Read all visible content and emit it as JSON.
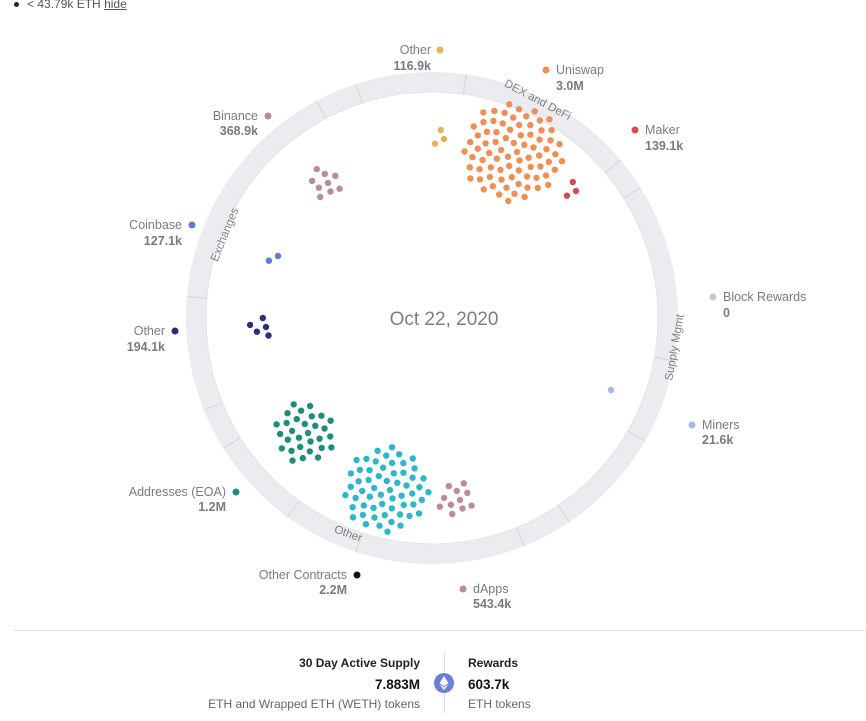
{
  "toggle": {
    "text": "< 43.79k ETH",
    "link": "hide"
  },
  "center_date": "Oct 22, 2020",
  "sectors": {
    "dex_defi": "DEX and DeFi",
    "supply_mgmt": "Supply Mgmt",
    "other": "Other",
    "exchanges": "Exchanges"
  },
  "labels": {
    "other_top": {
      "name": "Other",
      "value": "116.9k",
      "color": "#e3b35c"
    },
    "uniswap": {
      "name": "Uniswap",
      "value": "3.0M",
      "color": "#ee8f55"
    },
    "maker": {
      "name": "Maker",
      "value": "139.1k",
      "color": "#d54b4b"
    },
    "block_rewards": {
      "name": "Block Rewards",
      "value": "0",
      "color": "#c8c8cc"
    },
    "miners": {
      "name": "Miners",
      "value": "21.6k",
      "color": "#a8b6ee"
    },
    "dapps": {
      "name": "dApps",
      "value": "543.4k",
      "color": "#b88c98"
    },
    "other_contracts": {
      "name": "Other Contracts",
      "value": "2.2M",
      "color": "#111111"
    },
    "addresses_eoa": {
      "name": "Addresses (EOA)",
      "value": "1.2M",
      "color": "#1f8d7c"
    },
    "other_left": {
      "name": "Other",
      "value": "194.1k",
      "color": "#263178"
    },
    "coinbase": {
      "name": "Coinbase",
      "value": "127.1k",
      "color": "#5b7fd8"
    },
    "binance": {
      "name": "Binance",
      "value": "368.9k",
      "color": "#b88c98"
    }
  },
  "clusters": {
    "cluster_uniswap": {
      "color": "#ee8f55",
      "count": 78
    },
    "cluster_maker": {
      "color": "#d54b4b",
      "count": 3
    },
    "cluster_other_top": {
      "color": "#e3b35c",
      "count": 3
    },
    "cluster_binance": {
      "color": "#b88c98",
      "count": 9
    },
    "cluster_coinbase": {
      "color": "#5b7fd8",
      "count": 2
    },
    "cluster_other_left": {
      "color": "#263178",
      "count": 5
    },
    "cluster_eoa": {
      "color": "#1f8d7c",
      "count": 30
    },
    "cluster_other_contracts": {
      "color": "#2fb6c8",
      "count": 58
    },
    "cluster_dapps": {
      "color": "#b88c98",
      "count": 11
    },
    "cluster_miners": {
      "color": "#a8b6ee",
      "count": 1
    }
  },
  "footer": {
    "active_supply": {
      "title": "30 Day Active Supply",
      "value": "7.883M",
      "sub": "ETH and Wrapped ETH (WETH) tokens"
    },
    "rewards": {
      "title": "Rewards",
      "value": "603.7k",
      "sub": "ETH tokens"
    }
  }
}
